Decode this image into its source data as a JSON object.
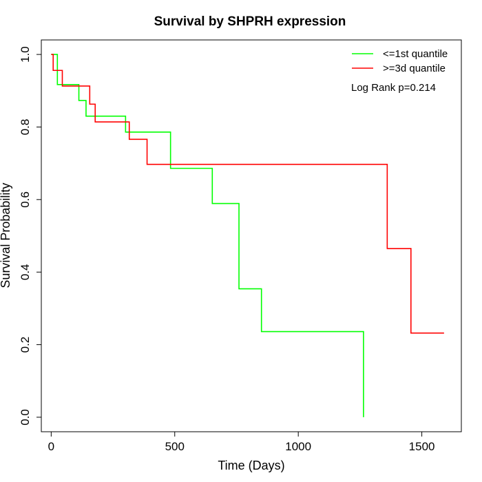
{
  "chart_data": {
    "type": "line",
    "subtype": "kaplan-meier-step",
    "title": "Survival by SHPRH expression",
    "xlabel": "Time (Days)",
    "ylabel": "Survival Probability",
    "xlim": [
      -40,
      1660
    ],
    "ylim": [
      -0.04,
      1.04
    ],
    "xticks": [
      0,
      500,
      1000,
      1500
    ],
    "xtick_labels": [
      "0",
      "500",
      "1000",
      "1500"
    ],
    "yticks": [
      0.0,
      0.2,
      0.4,
      0.6,
      0.8,
      1.0
    ],
    "ytick_labels": [
      "0.0",
      "0.2",
      "0.4",
      "0.6",
      "0.8",
      "1.0"
    ],
    "grid": false,
    "legend_position": "top-right",
    "annotation": "Log Rank p=0.214",
    "series": [
      {
        "name": "<=1st quantile",
        "color": "#00ff00",
        "x": [
          0,
          25,
          112,
          141,
          301,
          483,
          652,
          760,
          851,
          1264,
          1264
        ],
        "y": [
          1.0,
          0.917,
          0.873,
          0.83,
          0.786,
          0.686,
          0.589,
          0.354,
          0.236,
          0.236,
          0.0
        ]
      },
      {
        "name": ">=3d quantile",
        "color": "#ff0000",
        "x": [
          0,
          8,
          45,
          156,
          178,
          316,
          388,
          1360,
          1456,
          1590
        ],
        "y": [
          1.0,
          0.956,
          0.913,
          0.863,
          0.814,
          0.766,
          0.697,
          0.465,
          0.232,
          0.232
        ]
      }
    ]
  }
}
